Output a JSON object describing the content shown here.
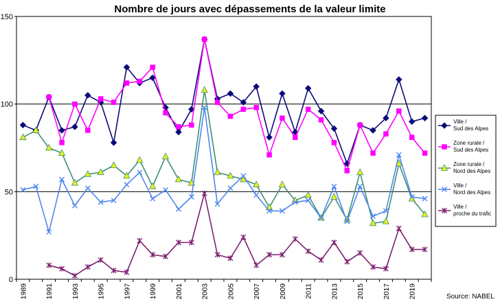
{
  "chart_data": {
    "type": "line",
    "title": "Nombre de jours avec dépassements de la valeur limite",
    "xlabel": "",
    "ylabel": "",
    "ylim": [
      0,
      150
    ],
    "yticks": [
      0,
      50,
      100,
      150
    ],
    "gridlines_y": [
      50,
      100,
      150
    ],
    "xlim": [
      1989,
      2020
    ],
    "xtick_labels": [
      "1989",
      "1991",
      "1993",
      "1995",
      "1997",
      "1999",
      "2001",
      "2003",
      "2005",
      "2007",
      "2009",
      "2011",
      "2013",
      "2015",
      "2017",
      "2019"
    ],
    "legend_placement": "right",
    "series": [
      {
        "name": "Ville / Sud des Alpes",
        "name_lines": [
          "Ville /",
          "Sud des Alpes"
        ],
        "color": "#0a0a78",
        "marker": "diamond",
        "x": [
          1989,
          1990,
          1991,
          1992,
          1993,
          1994,
          1995,
          1996,
          1997,
          1998,
          1999,
          2000,
          2001,
          2002,
          2003,
          2004,
          2005,
          2006,
          2007,
          2008,
          2009,
          2010,
          2011,
          2012,
          2013,
          2014,
          2015,
          2016,
          2017,
          2018,
          2019,
          2020
        ],
        "values": [
          88,
          85,
          104,
          85,
          87,
          105,
          101,
          78,
          121,
          112,
          115,
          98,
          84,
          97,
          137,
          103,
          106,
          101,
          110,
          81,
          106,
          84,
          109,
          96,
          86,
          66,
          88,
          85,
          92,
          114,
          90,
          92
        ]
      },
      {
        "name": "Zone rurale / Sud des Alpes",
        "name_lines": [
          "Zone rurale /",
          "Sud des Alpes"
        ],
        "color": "#ff00ff",
        "marker": "square",
        "x": [
          1991,
          1992,
          1993,
          1994,
          1995,
          1996,
          1997,
          1998,
          1999,
          2000,
          2001,
          2002,
          2003,
          2004,
          2005,
          2006,
          2007,
          2008,
          2009,
          2010,
          2011,
          2012,
          2013,
          2014,
          2015,
          2016,
          2017,
          2018,
          2019,
          2020
        ],
        "values": [
          104,
          78,
          100,
          85,
          103,
          101,
          112,
          113,
          121,
          95,
          87,
          88,
          137,
          101,
          93,
          97,
          98,
          71,
          92,
          81,
          97,
          91,
          78,
          62,
          88,
          72,
          83,
          96,
          81,
          72
        ]
      },
      {
        "name": "Zone rurale / Nord des Alpes",
        "name_lines": [
          "Zone rurale /",
          "Nord des Alpes"
        ],
        "color": "#3f8f75",
        "marker": "triangle",
        "marker_fill": "#e6f01e",
        "x": [
          1989,
          1990,
          1991,
          1992,
          1993,
          1994,
          1995,
          1996,
          1997,
          1998,
          1999,
          2000,
          2001,
          2002,
          2003,
          2004,
          2005,
          2006,
          2007,
          2008,
          2009,
          2010,
          2011,
          2012,
          2013,
          2014,
          2015,
          2016,
          2017,
          2018,
          2019,
          2020
        ],
        "values": [
          81,
          85,
          75,
          72,
          55,
          60,
          61,
          65,
          59,
          68,
          53,
          70,
          57,
          55,
          108,
          61,
          59,
          57,
          54,
          41,
          54,
          45,
          48,
          35,
          47,
          34,
          61,
          32,
          33,
          66,
          46,
          37
        ]
      },
      {
        "name": "Ville / Nord des Alpes",
        "name_lines": [
          "Ville /",
          "Nord des Alpes"
        ],
        "color": "#4f86ef",
        "marker": "x",
        "x": [
          1989,
          1990,
          1991,
          1992,
          1993,
          1994,
          1995,
          1996,
          1997,
          1998,
          1999,
          2000,
          2001,
          2002,
          2003,
          2004,
          2005,
          2006,
          2007,
          2008,
          2009,
          2010,
          2011,
          2012,
          2013,
          2014,
          2015,
          2016,
          2017,
          2018,
          2019,
          2020
        ],
        "values": [
          51,
          53,
          27,
          57,
          42,
          52,
          44,
          45,
          54,
          61,
          46,
          51,
          40,
          47,
          98,
          43,
          52,
          59,
          48,
          39,
          39,
          44,
          45,
          35,
          53,
          33,
          53,
          36,
          39,
          71,
          47,
          46
        ]
      },
      {
        "name": "Ville / proche du trafic",
        "name_lines": [
          "Ville /",
          "proche du trafic"
        ],
        "color": "#7b1f6f",
        "marker": "asterisk",
        "x": [
          1991,
          1992,
          1993,
          1994,
          1995,
          1996,
          1997,
          1998,
          1999,
          2000,
          2001,
          2002,
          2003,
          2004,
          2005,
          2006,
          2007,
          2008,
          2009,
          2010,
          2011,
          2012,
          2013,
          2014,
          2015,
          2016,
          2017,
          2018,
          2019,
          2020
        ],
        "values": [
          8,
          6,
          2,
          7,
          11,
          5,
          4,
          22,
          14,
          13,
          21,
          21,
          49,
          14,
          12,
          24,
          8,
          14,
          14,
          23,
          16,
          11,
          21,
          10,
          15,
          7,
          6,
          29,
          17,
          17
        ]
      }
    ]
  },
  "source_text": "Source: NABEL"
}
